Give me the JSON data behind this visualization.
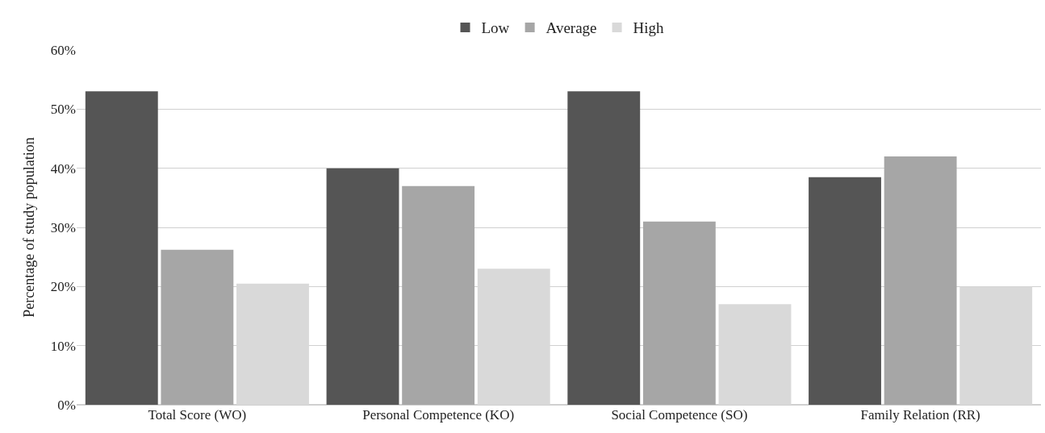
{
  "chart_data": {
    "type": "bar",
    "ylabel": "Percentage of study population",
    "categories": [
      "Total Score (WO)",
      "Personal Competence (KO)",
      "Social Competence (SO)",
      "Family Relation (RR)"
    ],
    "series": [
      {
        "name": "Low",
        "color": "#555555",
        "values": [
          53,
          40,
          53,
          38.5
        ]
      },
      {
        "name": "Average",
        "color": "#a6a6a6",
        "values": [
          26.2,
          37,
          31,
          42
        ]
      },
      {
        "name": "High",
        "color": "#d9d9d9",
        "values": [
          20.5,
          23,
          17,
          20
        ]
      }
    ],
    "ylim": [
      0,
      60
    ],
    "yticks": [
      {
        "value": 0,
        "label": "0%"
      },
      {
        "value": 10,
        "label": "10%"
      },
      {
        "value": 20,
        "label": "20%"
      },
      {
        "value": 30,
        "label": "30%"
      },
      {
        "value": 40,
        "label": "40%"
      },
      {
        "value": 50,
        "label": "50%"
      },
      {
        "value": 60,
        "label": "60%"
      }
    ],
    "grid": "y",
    "legend": "top"
  }
}
